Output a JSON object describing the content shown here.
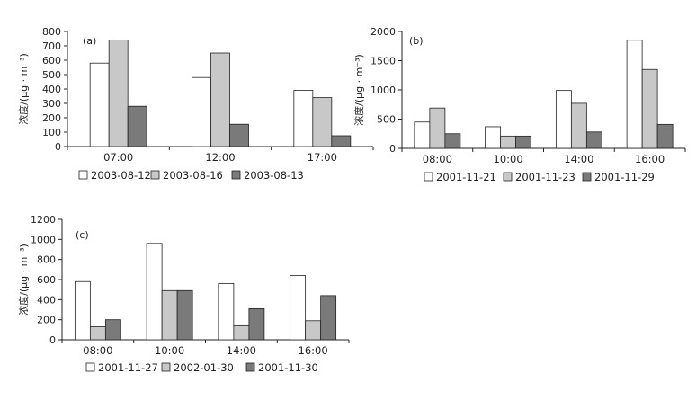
{
  "colors": {
    "white": "#ffffff",
    "light_gray": "#c8c8c8",
    "dark_gray": "#7a7a7a",
    "axis": "#222222"
  },
  "chart_data": [
    {
      "type": "bar",
      "panel_label": "(a)",
      "ylabel": "浓度/(μg · m⁻³)",
      "ylim": [
        0,
        800
      ],
      "yticks": [
        "0",
        "100",
        "200",
        "300",
        "400",
        "500",
        "600",
        "700",
        "800"
      ],
      "categories": [
        "07:00",
        "12:00",
        "17:00"
      ],
      "series": [
        {
          "name": "2003-08-12",
          "values": [
            580,
            480,
            390
          ]
        },
        {
          "name": "2003-08-16",
          "values": [
            740,
            650,
            340
          ]
        },
        {
          "name": "2003-08-13",
          "values": [
            280,
            155,
            75
          ]
        }
      ],
      "legend": "bottom"
    },
    {
      "type": "bar",
      "panel_label": "(b)",
      "ylabel": "浓度/(μg · m⁻³)",
      "ylim": [
        0,
        2000
      ],
      "yticks": [
        "0",
        "500",
        "1000",
        "1500",
        "2000"
      ],
      "categories": [
        "08:00",
        "10:00",
        "14:00",
        "16:00"
      ],
      "series": [
        {
          "name": "2001-11-21",
          "values": [
            450,
            370,
            990,
            1850
          ]
        },
        {
          "name": "2001-11-23",
          "values": [
            690,
            210,
            770,
            1350
          ]
        },
        {
          "name": "2001-11-29",
          "values": [
            250,
            210,
            280,
            410
          ]
        }
      ],
      "legend": "bottom"
    },
    {
      "type": "bar",
      "panel_label": "(c)",
      "ylabel": "浓度/(μg · m⁻³)",
      "ylim": [
        0,
        1200
      ],
      "yticks": [
        "0",
        "200",
        "400",
        "600",
        "800",
        "1000",
        "1200"
      ],
      "categories": [
        "08:00",
        "10:00",
        "14:00",
        "16:00"
      ],
      "series": [
        {
          "name": "2001-11-27",
          "values": [
            580,
            960,
            560,
            640
          ]
        },
        {
          "name": "2002-01-30",
          "values": [
            130,
            490,
            140,
            190
          ]
        },
        {
          "name": "2001-11-30",
          "values": [
            200,
            490,
            310,
            440
          ]
        }
      ],
      "legend": "bottom"
    }
  ]
}
